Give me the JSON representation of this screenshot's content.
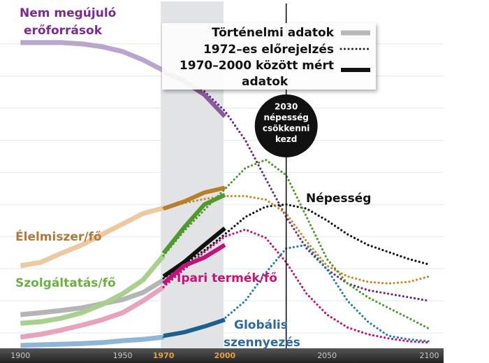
{
  "chart_data": {
    "type": "line",
    "x": [
      1900,
      1910,
      1920,
      1930,
      1940,
      1950,
      1960,
      1970,
      1980,
      1990,
      2000,
      2010,
      2020,
      2030,
      2040,
      2050,
      2060,
      2070,
      2080,
      2090,
      2100
    ],
    "xlim": [
      1890,
      2107
    ],
    "xticks": [
      1900,
      1950,
      1970,
      2000,
      2050,
      2100
    ],
    "xtick_colors": [
      "#c8c8c8",
      "#c8c8c8",
      "#e8a040",
      "#e8a040",
      "#c8c8c8",
      "#c8c8c8"
    ],
    "ylim": [
      -4,
      103
    ],
    "yticks": [
      0,
      10,
      20,
      30,
      40,
      50,
      60,
      70,
      80,
      90
    ],
    "grid": true,
    "legend": [
      {
        "label": [
          "Történelmi adatok"
        ],
        "style": "historical",
        "color": "#b8b8b8"
      },
      {
        "label": [
          "1972–es előrejelzés"
        ],
        "style": "forecast",
        "color": "#222222"
      },
      {
        "label": [
          "1970–2000 között mért",
          "adatok"
        ],
        "style": "measured",
        "color": "#111111"
      }
    ],
    "annotation": {
      "x": 2030,
      "text": [
        "2030",
        "népesség",
        "csökkenni",
        "kezd"
      ]
    },
    "series": [
      {
        "name": [
          "Nem megújuló",
          "erőforrások"
        ],
        "label_color": "#7a2a90",
        "colors": {
          "historical": "#baa6cc",
          "forecast": "#6b2d82",
          "measured": "#8a5a9e"
        },
        "historical": [
          90.4,
          90.4,
          90.4,
          90,
          89.1,
          87.6,
          85,
          81.7,
          null,
          null,
          null,
          null,
          null,
          null,
          null,
          null,
          null,
          null,
          null,
          null,
          null
        ],
        "forecast": [
          null,
          null,
          null,
          null,
          null,
          null,
          null,
          81.7,
          79.1,
          75.2,
          69.1,
          60,
          48,
          36.1,
          26.3,
          19.8,
          15.4,
          13.3,
          12.2,
          11.1,
          10
        ],
        "measured": [
          null,
          null,
          null,
          null,
          null,
          null,
          null,
          81.1,
          78.3,
          74.1,
          67.4,
          null,
          null,
          null,
          null,
          null,
          null,
          null,
          null,
          null,
          null
        ]
      },
      {
        "name": [
          "Népesség"
        ],
        "label_color": "#111111",
        "colors": {
          "historical": "#b5b5b5",
          "forecast": "#111111",
          "measured": "#111111"
        },
        "historical": [
          5.7,
          6.3,
          7,
          7.8,
          9.1,
          10.4,
          12.6,
          16.5,
          null,
          null,
          null,
          null,
          null,
          null,
          null,
          null,
          null,
          null,
          null,
          null,
          null
        ],
        "forecast": [
          null,
          null,
          null,
          null,
          null,
          null,
          null,
          17,
          21.3,
          25.7,
          30.7,
          36.1,
          39.3,
          40,
          38.7,
          35,
          30.7,
          27.4,
          25.2,
          23,
          21.3
        ],
        "measured": [
          null,
          null,
          null,
          null,
          null,
          null,
          null,
          17.6,
          22,
          27.4,
          32.6,
          null,
          null,
          null,
          null,
          null,
          null,
          null,
          null,
          null,
          null
        ]
      },
      {
        "name": [
          "Élelmiszer/fő"
        ],
        "label_color": "#b07a3a",
        "colors": {
          "historical": "#ecc9a0",
          "forecast": "#c8892f",
          "measured": "#b97e2a"
        },
        "historical": [
          20.9,
          22,
          24.8,
          27.4,
          30.7,
          33.9,
          37.2,
          38.9,
          null,
          null,
          null,
          null,
          null,
          null,
          null,
          null,
          null,
          null,
          null,
          null,
          null
        ],
        "forecast": [
          null,
          null,
          null,
          null,
          null,
          null,
          null,
          38.9,
          40.4,
          41.7,
          42.6,
          42.6,
          41.5,
          37.2,
          28.5,
          20.9,
          17.6,
          15.9,
          15.4,
          15.9,
          17.6
        ],
        "measured": [
          null,
          null,
          null,
          null,
          null,
          null,
          null,
          38.7,
          40.9,
          43.7,
          45.2,
          null,
          null,
          null,
          null,
          null,
          null,
          null,
          null,
          null,
          null
        ]
      },
      {
        "name": [
          "Szolgáltatás/fő"
        ],
        "label_color": "#6fae45",
        "colors": {
          "historical": "#a9d08e",
          "forecast": "#4f9a2f",
          "measured": "#4f9a2f"
        },
        "historical": [
          3,
          3.5,
          4.6,
          6.3,
          8.9,
          12.2,
          16.5,
          24.1,
          null,
          null,
          null,
          null,
          null,
          null,
          null,
          null,
          null,
          null,
          null,
          null,
          null
        ],
        "forecast": [
          null,
          null,
          null,
          null,
          null,
          null,
          null,
          24.1,
          31.7,
          38.3,
          44.8,
          51.3,
          53.9,
          49.1,
          36.1,
          23,
          15.4,
          11.1,
          7.8,
          4.6,
          1.3
        ],
        "measured": [
          null,
          null,
          null,
          null,
          null,
          null,
          null,
          24.8,
          32.8,
          40,
          43,
          null,
          null,
          null,
          null,
          null,
          null,
          null,
          null,
          null,
          null
        ]
      },
      {
        "name": [
          "Ipari termék/fő"
        ],
        "label_color": "#c0137b",
        "colors": {
          "historical": "#e7a3bc",
          "forecast": "#c0137b",
          "measured": "#c0137b"
        },
        "historical": [
          -1.3,
          -0.4,
          0.9,
          2.4,
          4.1,
          6.3,
          10,
          14.3,
          null,
          null,
          null,
          null,
          null,
          null,
          null,
          null,
          null,
          null,
          null,
          null,
          null
        ],
        "forecast": [
          null,
          null,
          null,
          null,
          null,
          null,
          null,
          14.3,
          19.8,
          25.2,
          30,
          32.2,
          29.6,
          22,
          12.2,
          5.7,
          1.7,
          -0.4,
          -1.7,
          -2.6,
          -3
        ],
        "measured": [
          null,
          null,
          null,
          null,
          null,
          null,
          null,
          15.4,
          20.9,
          23.5,
          27.4,
          null,
          null,
          null,
          null,
          null,
          null,
          null,
          null,
          null,
          null
        ]
      },
      {
        "name": [
          "Globális",
          "szennyezés"
        ],
        "label_color": "#2d6aa0",
        "colors": {
          "historical": "#8fb6d6",
          "forecast": "#2a7ea0",
          "measured": "#1e5f8e"
        },
        "historical": [
          -3.9,
          -3.7,
          -3.5,
          -3.3,
          -3,
          -2.4,
          -2,
          -1.3,
          null,
          null,
          null,
          null,
          null,
          null,
          null,
          null,
          null,
          null,
          null,
          null,
          null
        ],
        "forecast": [
          null,
          null,
          null,
          null,
          null,
          null,
          null,
          -1.3,
          0.2,
          2,
          4.6,
          10,
          18.7,
          26.3,
          27.4,
          19.8,
          10,
          3.5,
          -0.9,
          -2,
          -2.6
        ],
        "measured": [
          null,
          null,
          null,
          null,
          null,
          null,
          null,
          -0.9,
          0.2,
          2,
          4.1,
          null,
          null,
          null,
          null,
          null,
          null,
          null,
          null,
          null,
          null
        ]
      }
    ]
  }
}
